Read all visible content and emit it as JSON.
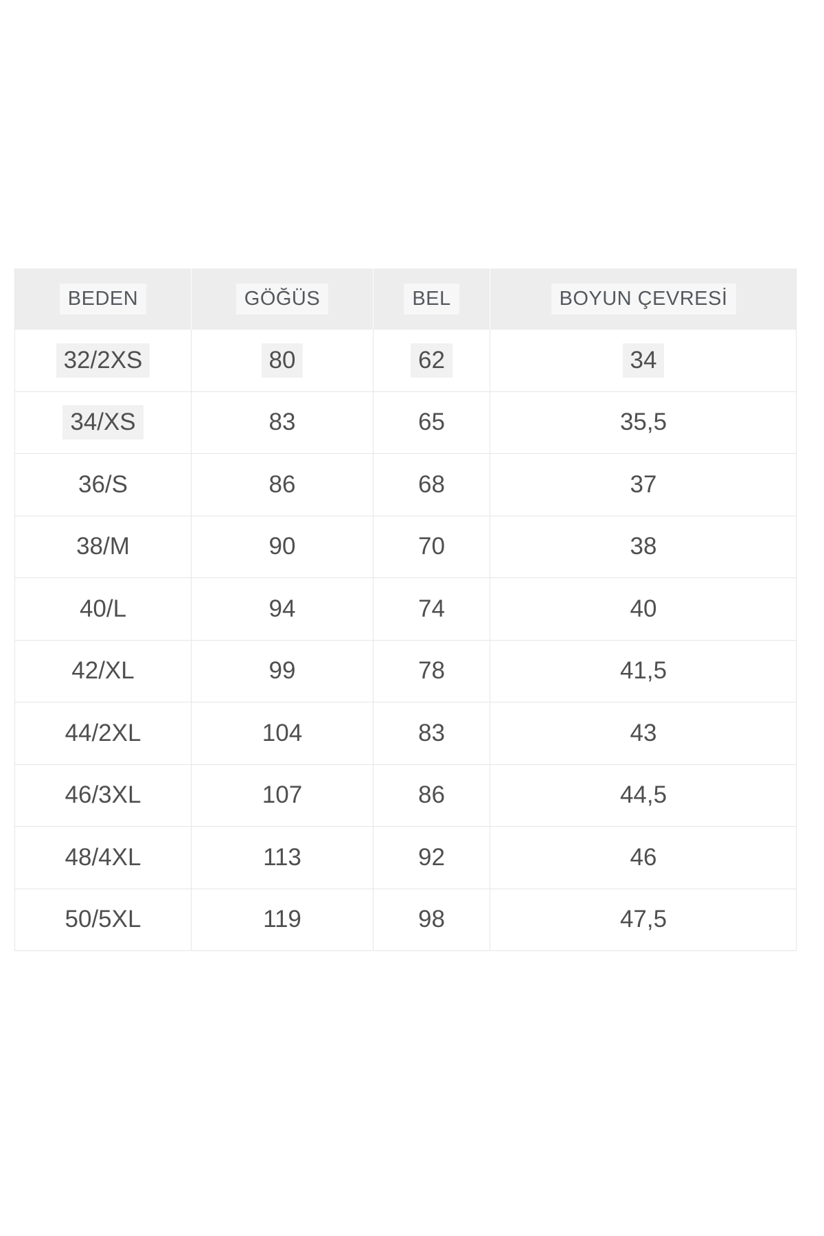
{
  "size_chart": {
    "columns": [
      {
        "key": "beden",
        "label": "BEDEN",
        "highlighted": true
      },
      {
        "key": "gogus",
        "label": "GÖĞÜS",
        "highlighted": true
      },
      {
        "key": "bel",
        "label": "BEL",
        "highlighted": true
      },
      {
        "key": "boyun_cevresi",
        "label": "BOYUN ÇEVRESİ",
        "highlighted": true
      }
    ],
    "rows": [
      {
        "cells": [
          {
            "text": "32/2XS",
            "highlighted": true
          },
          {
            "text": "80",
            "highlighted": true
          },
          {
            "text": "62",
            "highlighted": true
          },
          {
            "text": "34",
            "highlighted": true
          }
        ]
      },
      {
        "cells": [
          {
            "text": "34/XS",
            "highlighted": true
          },
          {
            "text": "83",
            "highlighted": false
          },
          {
            "text": "65",
            "highlighted": false
          },
          {
            "text": "35,5",
            "highlighted": false
          }
        ]
      },
      {
        "cells": [
          {
            "text": "36/S",
            "highlighted": false
          },
          {
            "text": "86",
            "highlighted": false
          },
          {
            "text": "68",
            "highlighted": false
          },
          {
            "text": "37",
            "highlighted": false
          }
        ]
      },
      {
        "cells": [
          {
            "text": "38/M",
            "highlighted": false
          },
          {
            "text": "90",
            "highlighted": false
          },
          {
            "text": "70",
            "highlighted": false
          },
          {
            "text": "38",
            "highlighted": false
          }
        ]
      },
      {
        "cells": [
          {
            "text": "40/L",
            "highlighted": false
          },
          {
            "text": "94",
            "highlighted": false
          },
          {
            "text": "74",
            "highlighted": false
          },
          {
            "text": "40",
            "highlighted": false
          }
        ]
      },
      {
        "cells": [
          {
            "text": "42/XL",
            "highlighted": false
          },
          {
            "text": "99",
            "highlighted": false
          },
          {
            "text": "78",
            "highlighted": false
          },
          {
            "text": "41,5",
            "highlighted": false
          }
        ]
      },
      {
        "cells": [
          {
            "text": "44/2XL",
            "highlighted": false
          },
          {
            "text": "104",
            "highlighted": false
          },
          {
            "text": "83",
            "highlighted": false
          },
          {
            "text": "43",
            "highlighted": false
          }
        ]
      },
      {
        "cells": [
          {
            "text": "46/3XL",
            "highlighted": false
          },
          {
            "text": "107",
            "highlighted": false
          },
          {
            "text": "86",
            "highlighted": false
          },
          {
            "text": "44,5",
            "highlighted": false
          }
        ]
      },
      {
        "cells": [
          {
            "text": "48/4XL",
            "highlighted": false
          },
          {
            "text": "113",
            "highlighted": false
          },
          {
            "text": "92",
            "highlighted": false
          },
          {
            "text": "46",
            "highlighted": false
          }
        ]
      },
      {
        "cells": [
          {
            "text": "50/5XL",
            "highlighted": false
          },
          {
            "text": "119",
            "highlighted": false
          },
          {
            "text": "98",
            "highlighted": false
          },
          {
            "text": "47,5",
            "highlighted": false
          }
        ]
      }
    ]
  },
  "colors": {
    "header_bg": "#ededed",
    "header_text": "#54585d",
    "cell_text": "#4f4f4f",
    "border": "#e6e6e6",
    "highlight_bg": "#f1f1f1"
  }
}
